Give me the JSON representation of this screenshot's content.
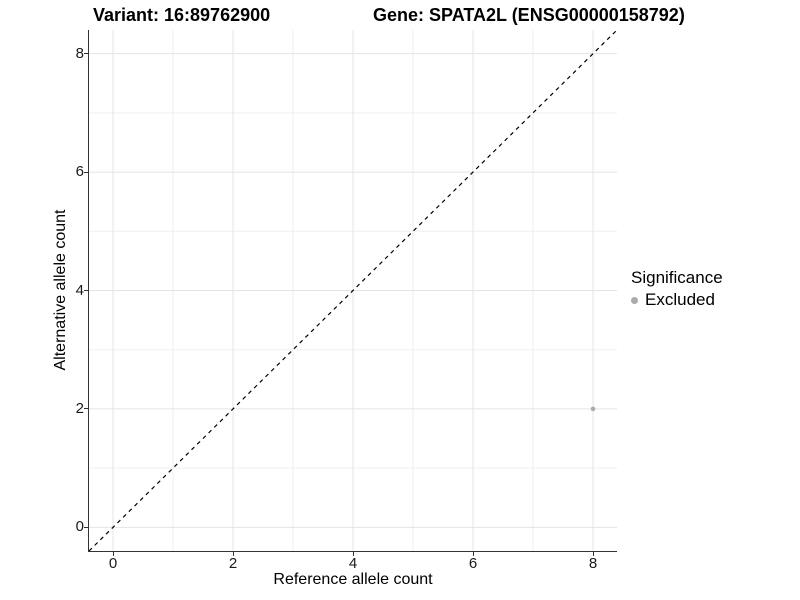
{
  "titles": {
    "variant": "Variant: 16:89762900",
    "gene": "Gene: SPATA2L (ENSG00000158792)"
  },
  "chart_data": {
    "type": "scatter",
    "title_left": "Variant: 16:89762900",
    "title_right": "Gene: SPATA2L (ENSG00000158792)",
    "xlabel": "Reference allele count",
    "ylabel": "Alternative allele count",
    "xlim": [
      -0.4,
      8.4
    ],
    "ylim": [
      -0.4,
      8.4
    ],
    "x_ticks": [
      0,
      2,
      4,
      6,
      8
    ],
    "y_ticks": [
      0,
      2,
      4,
      6,
      8
    ],
    "minor_ticks": [
      1,
      3,
      5,
      7
    ],
    "grid": true,
    "identity_line": {
      "style": "dashed",
      "from": [
        -0.4,
        -0.4
      ],
      "to": [
        8.4,
        8.4
      ],
      "color": "#000000"
    },
    "points": [
      {
        "x": 8,
        "y": 2,
        "series": "Excluded",
        "color": "#ababab",
        "radius": 2.3
      }
    ],
    "legend": {
      "position": "right",
      "title": "Significance",
      "items": [
        {
          "label": "Excluded",
          "color": "#ababab"
        }
      ]
    }
  },
  "colors": {
    "major_grid": "#e4e4e4",
    "minor_grid": "#efefef",
    "axis_line": "#333333",
    "tick_label": "#1a1a1a",
    "point": "#ababab"
  }
}
